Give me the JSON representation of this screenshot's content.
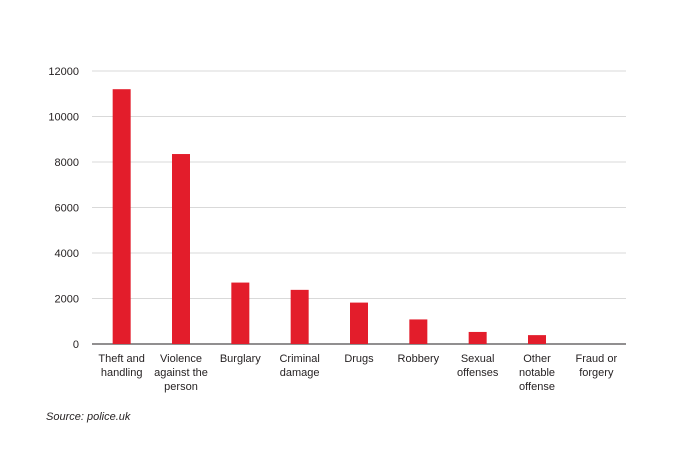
{
  "chart_data": {
    "type": "bar",
    "categories": [
      [
        "Theft and",
        "handling"
      ],
      [
        "Violence",
        "against the",
        "person"
      ],
      [
        "Burglary"
      ],
      [
        "Criminal",
        "damage"
      ],
      [
        "Drugs"
      ],
      [
        "Robbery"
      ],
      [
        "Sexual",
        "offenses"
      ],
      [
        "Other",
        "notable",
        "offense"
      ],
      [
        "Fraud or",
        "forgery"
      ]
    ],
    "values": [
      11200,
      8350,
      2700,
      2380,
      1820,
      1080,
      530,
      390,
      0
    ],
    "ylim": [
      0,
      12000
    ],
    "yticks": [
      0,
      2000,
      4000,
      6000,
      8000,
      10000,
      12000
    ],
    "grid": true,
    "bar_color": "#e31d2b",
    "grid_color": "#d9d9d9",
    "axis_color": "#231f20"
  },
  "source": "Source: police.uk"
}
